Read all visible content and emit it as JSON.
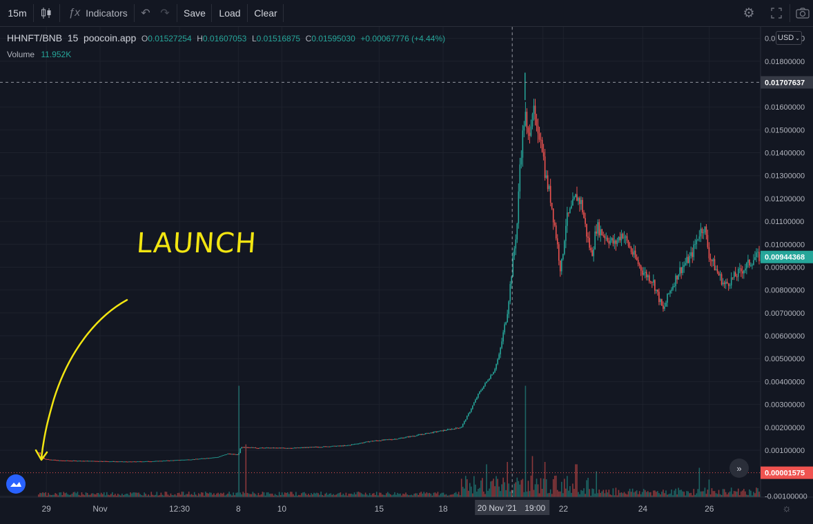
{
  "toolbar": {
    "interval": "15m",
    "indicators_label": "Indicators",
    "save_label": "Save",
    "load_label": "Load",
    "clear_label": "Clear"
  },
  "legend": {
    "symbol": "HHNFT/BNB",
    "interval": "15",
    "source": "poocoin.app",
    "o_key": "O",
    "o": "0.01527254",
    "h_key": "H",
    "h": "0.01607053",
    "l_key": "L",
    "l": "0.01516875",
    "c_key": "C",
    "c": "0.01595030",
    "change": "+0.00067776 (+4.44%)",
    "volume_label": "Volume",
    "volume": "11.952K"
  },
  "currency": "USD",
  "annotation": "LAUNCH",
  "colors": {
    "up": "#26a69a",
    "down": "#ef5350",
    "background": "#131722",
    "annotation": "#f2e511"
  },
  "chart_data": {
    "type": "candlestick",
    "y_ticks": [
      "0.01900000",
      "0.01800000",
      "0.01600000",
      "0.01500000",
      "0.01400000",
      "0.01300000",
      "0.01200000",
      "0.01100000",
      "0.01000000",
      "0.00900000",
      "0.00800000",
      "0.00700000",
      "0.00600000",
      "0.00500000",
      "0.00400000",
      "0.00300000",
      "0.00200000",
      "0.00100000",
      "-0.00100000"
    ],
    "x_ticks": [
      "29",
      "Nov",
      "12:30",
      "8",
      "10",
      "15",
      "18",
      "20 Nov '21",
      "19:00",
      "22",
      "24",
      "26"
    ],
    "crosshair_price": "0.01707637",
    "last_price": "0.00944368",
    "low_line_price": "0.00001575",
    "ylim": [
      -0.00105,
      0.0195
    ],
    "price_path": [
      [
        0,
        0.0009
      ],
      [
        2,
        0.00062
      ],
      [
        8,
        0.00055
      ],
      [
        20,
        0.00053
      ],
      [
        35,
        0.0005
      ],
      [
        45,
        0.00052
      ],
      [
        60,
        0.0006
      ],
      [
        70,
        0.0007
      ],
      [
        74,
        0.00085
      ],
      [
        78,
        0.0008
      ],
      [
        79,
        0.00115
      ],
      [
        85,
        0.0011
      ],
      [
        100,
        0.0011
      ],
      [
        110,
        0.00115
      ],
      [
        120,
        0.0012
      ],
      [
        130,
        0.0014
      ],
      [
        140,
        0.0015
      ],
      [
        150,
        0.0017
      ],
      [
        160,
        0.0019
      ],
      [
        165,
        0.002
      ],
      [
        168,
        0.0026
      ],
      [
        172,
        0.0035
      ],
      [
        175,
        0.004
      ],
      [
        178,
        0.0045
      ],
      [
        180,
        0.0052
      ],
      [
        181,
        0.0058
      ],
      [
        183,
        0.007
      ],
      [
        185,
        0.009
      ],
      [
        187,
        0.011
      ],
      [
        188,
        0.0135
      ],
      [
        190,
        0.0158
      ],
      [
        191,
        0.0145
      ],
      [
        193,
        0.016
      ],
      [
        195,
        0.0145
      ],
      [
        196,
        0.015
      ],
      [
        198,
        0.013
      ],
      [
        200,
        0.012
      ],
      [
        202,
        0.0105
      ],
      [
        204,
        0.0088
      ],
      [
        206,
        0.011
      ],
      [
        208,
        0.0115
      ],
      [
        210,
        0.0121
      ],
      [
        212,
        0.0118
      ],
      [
        214,
        0.0105
      ],
      [
        216,
        0.0095
      ],
      [
        218,
        0.0108
      ],
      [
        220,
        0.0105
      ],
      [
        225,
        0.01
      ],
      [
        228,
        0.0105
      ],
      [
        232,
        0.0096
      ],
      [
        236,
        0.0088
      ],
      [
        240,
        0.0084
      ],
      [
        243,
        0.0074
      ],
      [
        244,
        0.0071
      ],
      [
        246,
        0.0078
      ],
      [
        250,
        0.0088
      ],
      [
        255,
        0.0095
      ],
      [
        258,
        0.0105
      ],
      [
        260,
        0.0108
      ],
      [
        262,
        0.0095
      ],
      [
        265,
        0.0088
      ],
      [
        268,
        0.0082
      ],
      [
        272,
        0.0086
      ],
      [
        276,
        0.009
      ],
      [
        280,
        0.00944
      ]
    ],
    "volume_spikes": [
      [
        78,
        0.95
      ],
      [
        81,
        0.45
      ],
      [
        190,
        0.95
      ],
      [
        193,
        0.35
      ],
      [
        183,
        0.3
      ],
      [
        175,
        0.28
      ],
      [
        198,
        0.3
      ],
      [
        210,
        0.28
      ],
      [
        218,
        0.22
      ],
      [
        258,
        0.25
      ],
      [
        262,
        0.15
      ]
    ]
  }
}
